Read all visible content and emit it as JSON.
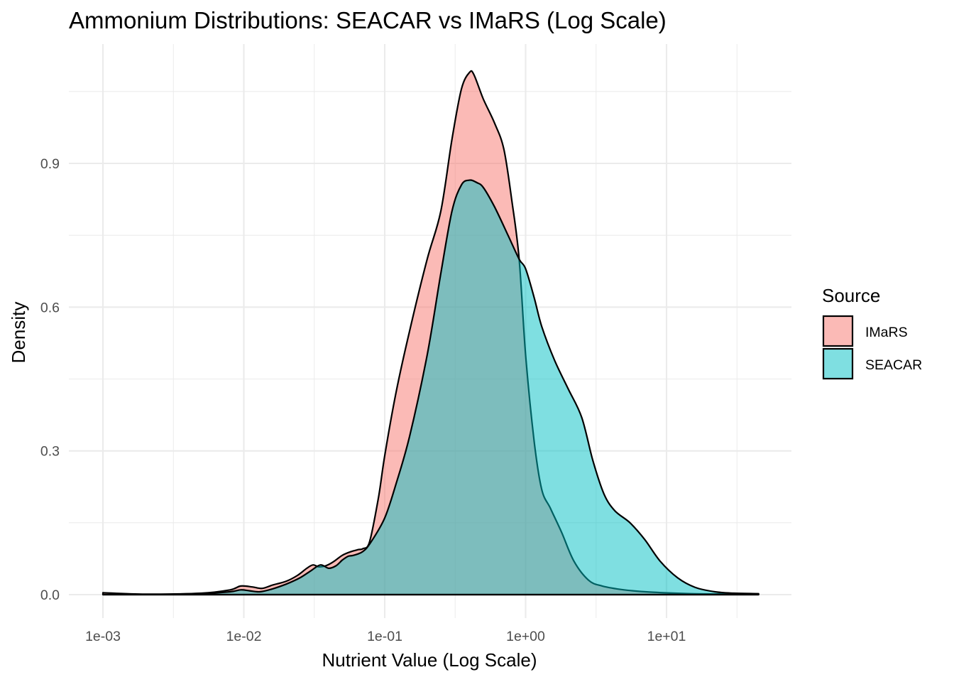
{
  "chart_data": {
    "type": "area",
    "title": "Ammonium Distributions: SEACAR vs IMaRS (Log Scale)",
    "xlabel": "Nutrient Value (Log Scale)",
    "ylabel": "Density",
    "x_scale": "log10",
    "xlim": [
      0.001,
      45
    ],
    "ylim": [
      -0.05,
      1.1
    ],
    "x_ticks": [
      {
        "value": 0.001,
        "label": "1e-03"
      },
      {
        "value": 0.01,
        "label": "1e-02"
      },
      {
        "value": 0.1,
        "label": "1e-01"
      },
      {
        "value": 1,
        "label": "1e+00"
      },
      {
        "value": 10,
        "label": "1e+01"
      }
    ],
    "y_ticks": [
      {
        "value": 0.0,
        "label": "0.0"
      },
      {
        "value": 0.3,
        "label": "0.3"
      },
      {
        "value": 0.6,
        "label": "0.6"
      },
      {
        "value": 0.9,
        "label": "0.9"
      }
    ],
    "grid": true,
    "legend": {
      "title": "Source",
      "position": "right"
    },
    "series": [
      {
        "name": "IMaRS",
        "color": "#F8766D",
        "x": [
          0.001,
          0.002,
          0.005,
          0.008,
          0.0095,
          0.0115,
          0.0135,
          0.016,
          0.02,
          0.024,
          0.028,
          0.031,
          0.034,
          0.038,
          0.043,
          0.05,
          0.058,
          0.065,
          0.07,
          0.078,
          0.09,
          0.1,
          0.12,
          0.15,
          0.2,
          0.25,
          0.3,
          0.35,
          0.4,
          0.43,
          0.5,
          0.6,
          0.7,
          0.8,
          0.9,
          1.0,
          1.15,
          1.3,
          1.5,
          1.8,
          2.2,
          2.8,
          3.5,
          5,
          8,
          15,
          30,
          45
        ],
        "y": [
          0.004,
          0.001,
          0.003,
          0.01,
          0.018,
          0.016,
          0.013,
          0.02,
          0.028,
          0.04,
          0.055,
          0.062,
          0.058,
          0.06,
          0.068,
          0.082,
          0.09,
          0.094,
          0.096,
          0.11,
          0.2,
          0.29,
          0.42,
          0.55,
          0.7,
          0.8,
          0.95,
          1.055,
          1.09,
          1.085,
          1.035,
          0.985,
          0.93,
          0.82,
          0.7,
          0.5,
          0.32,
          0.22,
          0.18,
          0.13,
          0.07,
          0.03,
          0.018,
          0.01,
          0.005,
          0.002,
          0.001,
          0.0
        ],
        "fill_opacity": 0.5
      },
      {
        "name": "SEACAR",
        "color": "#00BFC4",
        "x": [
          0.001,
          0.002,
          0.005,
          0.008,
          0.0095,
          0.011,
          0.013,
          0.016,
          0.02,
          0.025,
          0.03,
          0.035,
          0.04,
          0.045,
          0.05,
          0.055,
          0.06,
          0.07,
          0.08,
          0.1,
          0.12,
          0.15,
          0.2,
          0.25,
          0.3,
          0.35,
          0.4,
          0.45,
          0.5,
          0.6,
          0.75,
          0.9,
          1.0,
          1.15,
          1.3,
          1.6,
          2.0,
          2.5,
          3.0,
          3.6,
          4.3,
          5.5,
          7,
          9,
          12,
          16,
          22,
          30,
          45
        ],
        "y": [
          0.0,
          0.0,
          0.002,
          0.006,
          0.01,
          0.008,
          0.006,
          0.012,
          0.022,
          0.035,
          0.05,
          0.062,
          0.055,
          0.06,
          0.072,
          0.08,
          0.082,
          0.09,
          0.11,
          0.16,
          0.23,
          0.33,
          0.5,
          0.67,
          0.8,
          0.855,
          0.865,
          0.86,
          0.85,
          0.81,
          0.75,
          0.7,
          0.68,
          0.62,
          0.56,
          0.49,
          0.43,
          0.37,
          0.28,
          0.21,
          0.175,
          0.15,
          0.115,
          0.07,
          0.035,
          0.015,
          0.006,
          0.003,
          0.002
        ],
        "fill_opacity": 0.5
      }
    ]
  }
}
